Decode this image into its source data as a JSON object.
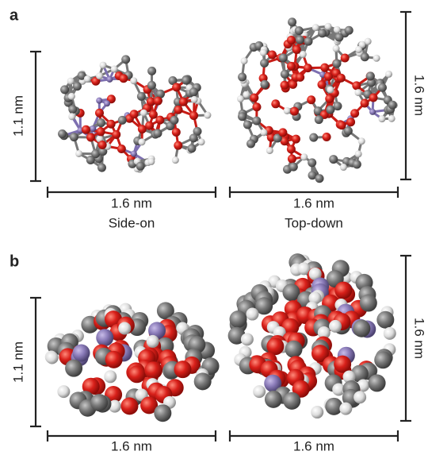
{
  "panels": [
    {
      "label": "a",
      "side": {
        "height": "1.1 nm",
        "width": "1.6 nm",
        "caption": "Side-on"
      },
      "top": {
        "height": "1.6 nm",
        "width": "1.6 nm",
        "caption": "Top-down"
      }
    },
    {
      "label": "b",
      "side": {
        "height": "1.1 nm",
        "width": "1.6 nm"
      },
      "top": {
        "height": "1.6 nm",
        "width": "1.6 nm"
      }
    }
  ]
}
